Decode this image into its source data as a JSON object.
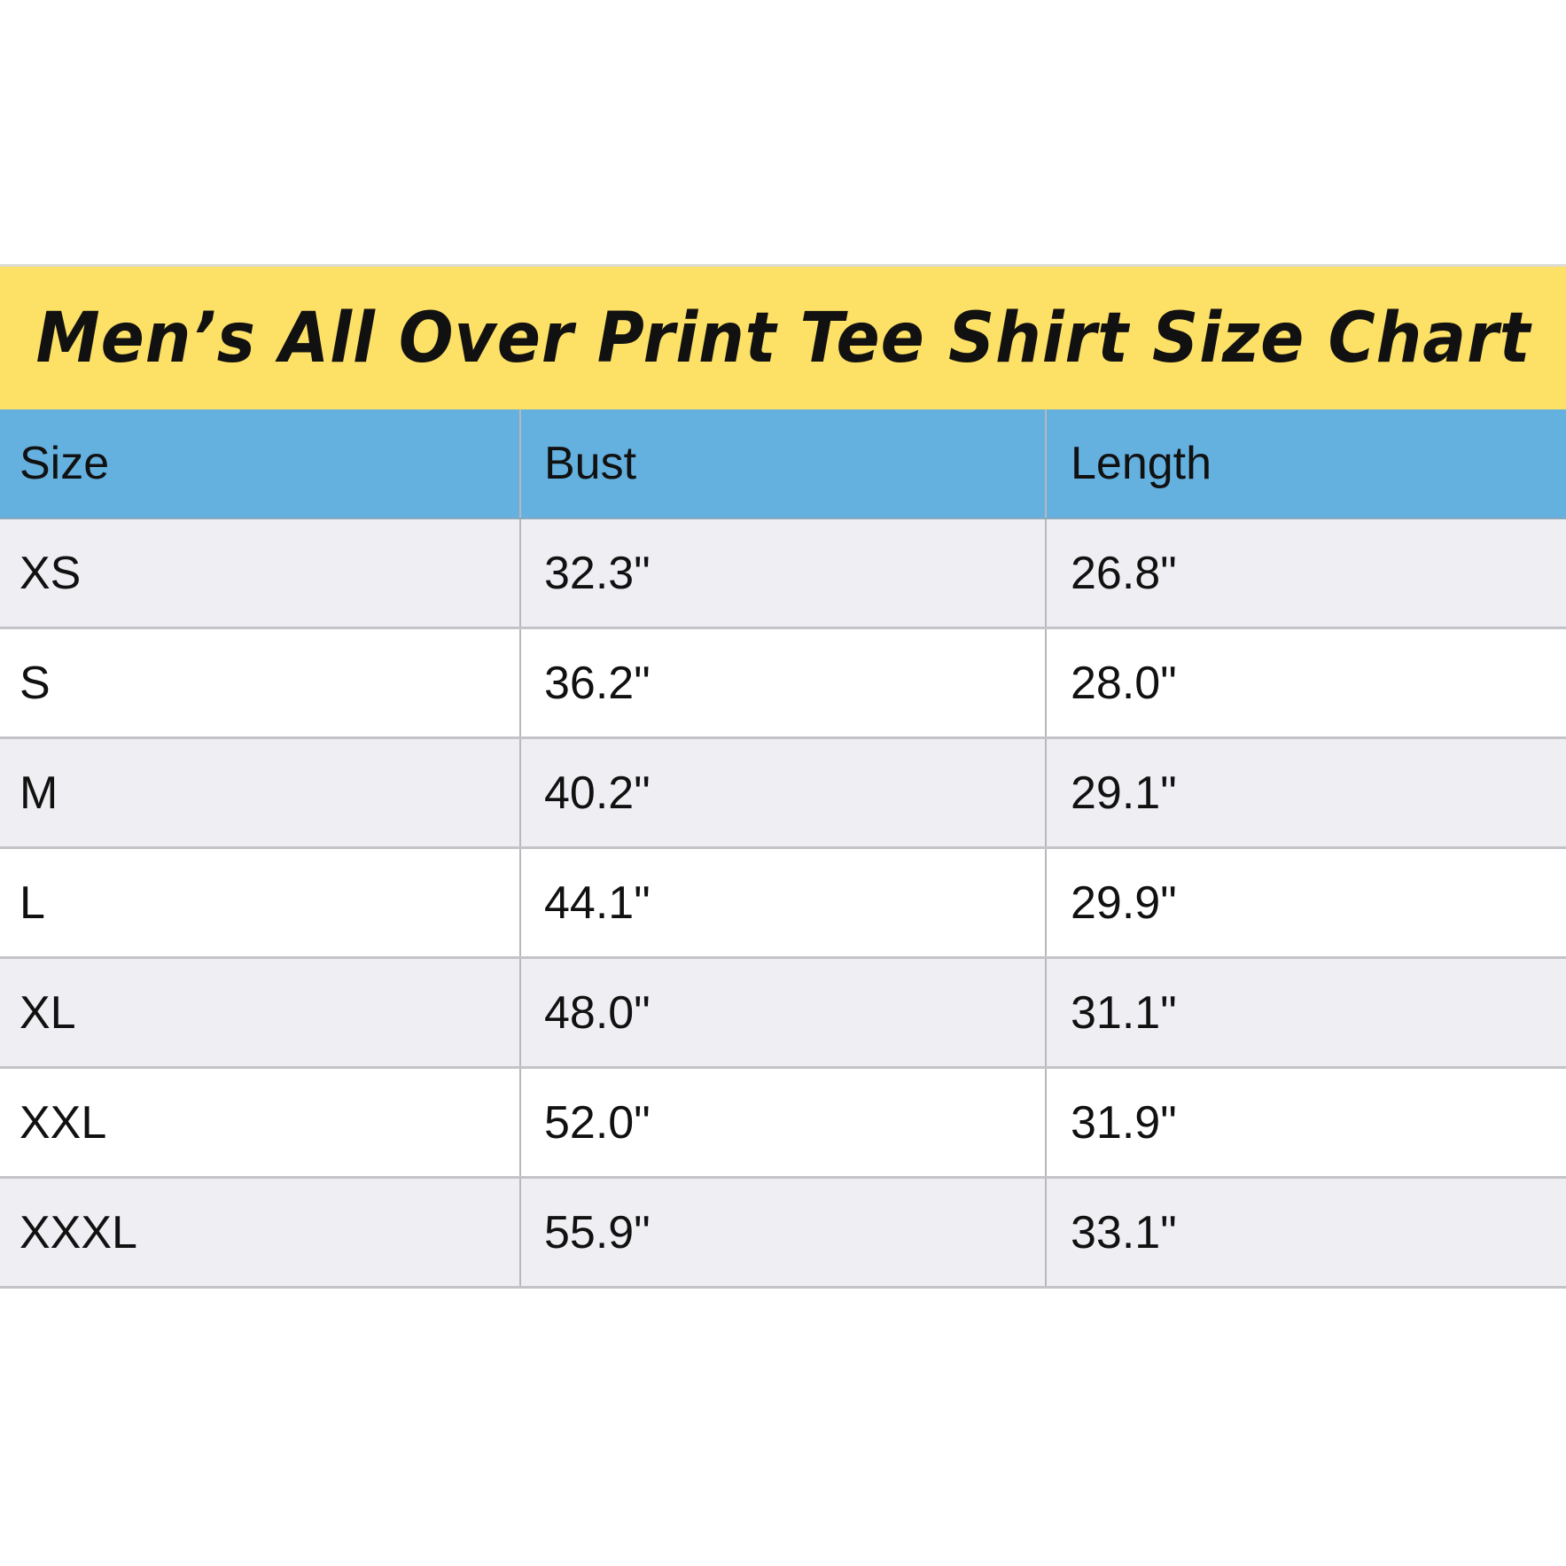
{
  "title": "Men’s All Over Print Tee Shirt Size Chart",
  "colors": {
    "title_band": "#fde066",
    "header_row": "#64b0df",
    "stripe_row": "#efeef2"
  },
  "table": {
    "headers": [
      "Size",
      "Bust",
      "Length"
    ],
    "rows": [
      [
        "XS",
        "32.3\"",
        "26.8\""
      ],
      [
        "S",
        "36.2\"",
        "28.0\""
      ],
      [
        "M",
        "40.2\"",
        "29.1\""
      ],
      [
        "L",
        "44.1\"",
        "29.9\""
      ],
      [
        "XL",
        "48.0\"",
        "31.1\""
      ],
      [
        "XXL",
        "52.0\"",
        "31.9\""
      ],
      [
        "XXXL",
        "55.9\"",
        "33.1\""
      ]
    ]
  }
}
